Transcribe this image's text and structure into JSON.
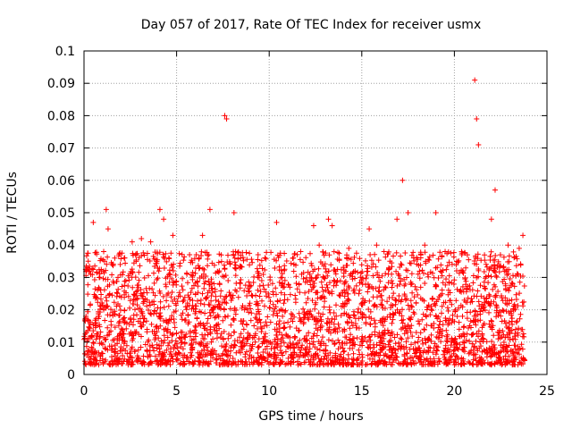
{
  "chart_data": {
    "type": "scatter",
    "title": "Day 057 of 2017, Rate Of TEC Index for receiver usmx",
    "xlabel": "GPS time / hours",
    "ylabel": "ROTI / TECUs",
    "xlim": [
      0,
      25
    ],
    "ylim": [
      0,
      0.1
    ],
    "xticks": [
      0,
      5,
      10,
      15,
      20,
      25
    ],
    "xtick_labels": [
      "0",
      "5",
      "10",
      "15",
      "20",
      "25"
    ],
    "yticks": [
      0,
      0.01,
      0.02,
      0.03,
      0.04,
      0.05,
      0.06,
      0.07,
      0.08,
      0.09,
      0.1
    ],
    "ytick_labels": [
      "0",
      "0.01",
      "0.02",
      "0.03",
      "0.04",
      "0.05",
      "0.06",
      "0.07",
      "0.08",
      "0.09",
      "0.1"
    ],
    "grid": true,
    "marker": "+",
    "marker_color": "#ff0000",
    "data_x_range": [
      0,
      23.8
    ],
    "typical_y_range": [
      0.003,
      0.03
    ],
    "x": [
      0.2,
      0.3,
      0.5,
      1.2,
      1.3,
      2.2,
      2.6,
      3.1,
      3.6,
      4.1,
      4.3,
      4.8,
      5.7,
      6.4,
      6.8,
      7.6,
      7.7,
      8.1,
      9.4,
      10.4,
      10.7,
      11.3,
      11.7,
      12.4,
      12.7,
      13.2,
      13.4,
      14.3,
      15.4,
      15.8,
      16.2,
      16.9,
      17.2,
      17.5,
      17.8,
      18.4,
      19.0,
      19.5,
      20.4,
      21.1,
      21.2,
      21.3,
      22.0,
      22.2,
      22.9,
      23.5,
      23.7
    ],
    "y": [
      0.033,
      0.032,
      0.047,
      0.051,
      0.045,
      0.036,
      0.041,
      0.042,
      0.041,
      0.051,
      0.048,
      0.043,
      0.037,
      0.043,
      0.051,
      0.08,
      0.079,
      0.05,
      0.037,
      0.047,
      0.03,
      0.036,
      0.038,
      0.046,
      0.04,
      0.048,
      0.046,
      0.039,
      0.045,
      0.04,
      0.038,
      0.048,
      0.06,
      0.05,
      0.036,
      0.04,
      0.05,
      0.038,
      0.037,
      0.091,
      0.079,
      0.071,
      0.048,
      0.057,
      0.04,
      0.039,
      0.043
    ]
  }
}
